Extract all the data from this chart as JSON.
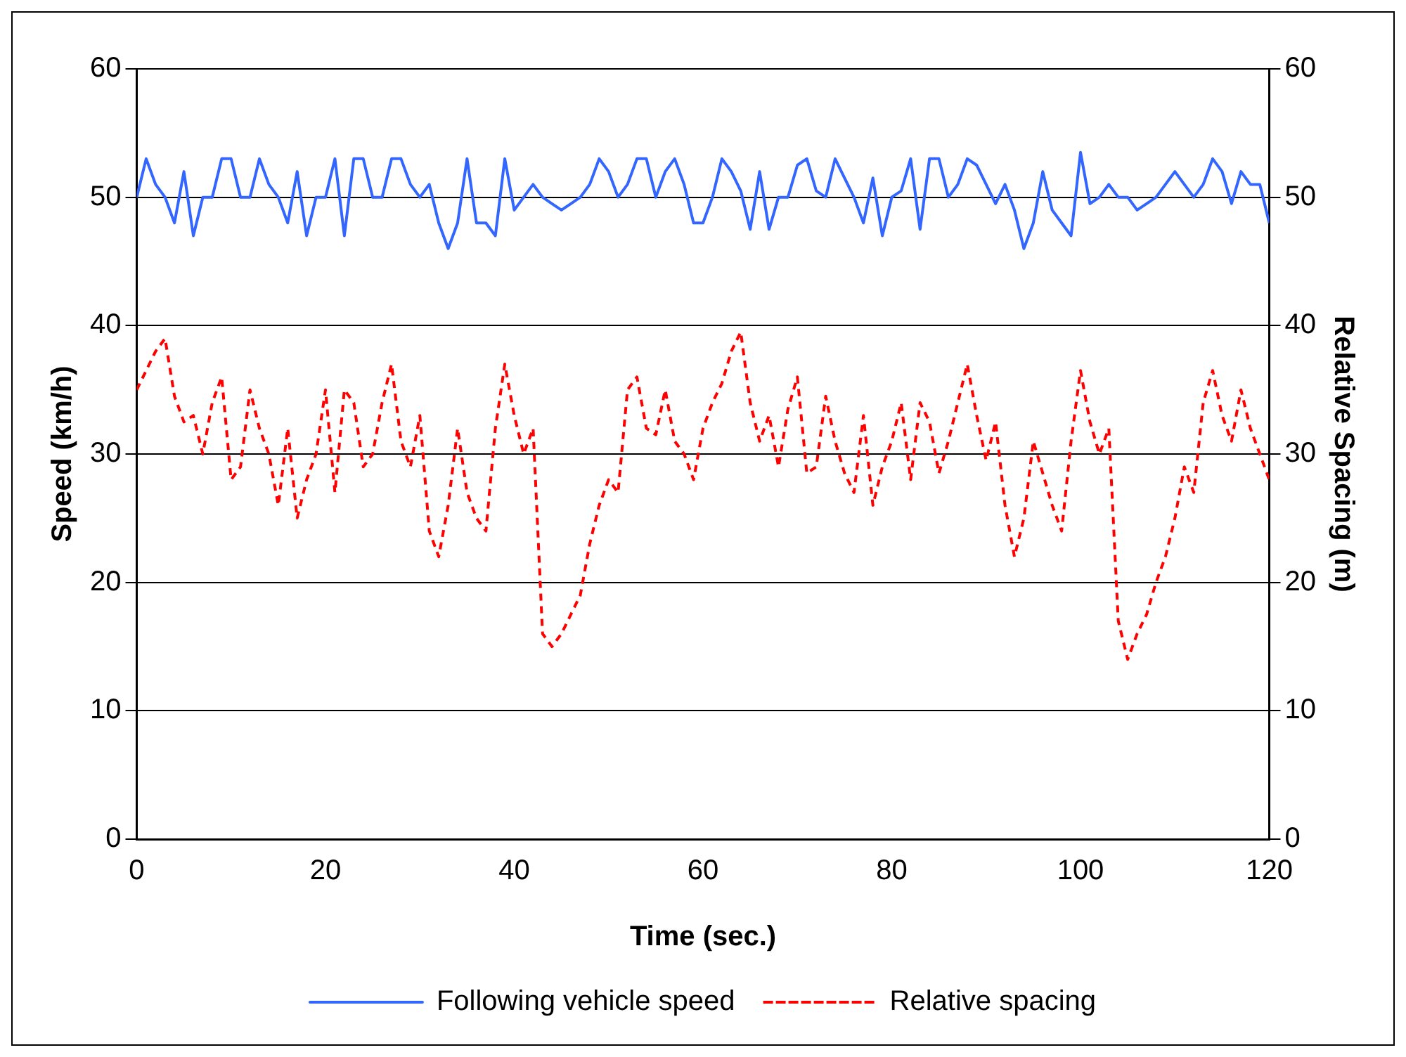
{
  "chart_data": {
    "type": "line",
    "xlabel": "Time (sec.)",
    "ylabel": "Speed (km/h)",
    "y2label": "Relative Spacing (m)",
    "x": [
      0,
      1,
      2,
      3,
      4,
      5,
      6,
      7,
      8,
      9,
      10,
      11,
      12,
      13,
      14,
      15,
      16,
      17,
      18,
      19,
      20,
      21,
      22,
      23,
      24,
      25,
      26,
      27,
      28,
      29,
      30,
      31,
      32,
      33,
      34,
      35,
      36,
      37,
      38,
      39,
      40,
      41,
      42,
      43,
      44,
      45,
      46,
      47,
      48,
      49,
      50,
      51,
      52,
      53,
      54,
      55,
      56,
      57,
      58,
      59,
      60,
      61,
      62,
      63,
      64,
      65,
      66,
      67,
      68,
      69,
      70,
      71,
      72,
      73,
      74,
      75,
      76,
      77,
      78,
      79,
      80,
      81,
      82,
      83,
      84,
      85,
      86,
      87,
      88,
      89,
      90,
      91,
      92,
      93,
      94,
      95,
      96,
      97,
      98,
      99,
      100,
      101,
      102,
      103,
      104,
      105,
      106,
      107,
      108,
      109,
      110,
      111,
      112,
      113,
      114,
      115,
      116,
      117,
      118,
      119,
      120
    ],
    "series": [
      {
        "name": "Following vehicle speed",
        "color": "#3366ff",
        "line_style": "solid",
        "values": [
          50,
          53,
          51,
          50,
          48,
          52,
          47,
          50,
          50,
          53,
          53,
          50,
          50,
          53,
          51,
          50,
          48,
          52,
          47,
          50,
          50,
          53,
          47,
          53,
          53,
          50,
          50,
          53,
          53,
          51,
          50,
          51,
          48,
          46,
          48,
          53,
          48,
          48,
          47,
          53,
          49,
          50,
          51,
          50,
          49.5,
          49,
          49.5,
          50,
          51,
          53,
          52,
          50,
          51,
          53,
          53,
          50,
          52,
          53,
          51,
          48,
          48,
          50,
          53,
          52,
          50.5,
          47.5,
          52,
          47.5,
          50,
          50,
          52.5,
          53,
          50.5,
          50,
          53,
          51.5,
          50,
          48,
          51.5,
          47,
          50,
          50.5,
          53,
          47.5,
          53,
          53,
          50,
          51,
          53,
          52.5,
          51,
          49.5,
          51,
          49,
          46,
          48,
          52,
          49,
          48,
          47,
          53.5,
          49.5,
          50,
          51,
          50,
          50,
          49,
          49.5,
          50,
          51,
          52,
          51,
          50,
          51,
          53,
          52,
          49.5,
          52,
          51,
          51,
          48
        ]
      },
      {
        "name": "Relative spacing",
        "color": "#ff0000",
        "line_style": "dashed",
        "axis": "y2",
        "values": [
          35,
          36.5,
          38,
          39,
          34.5,
          32.5,
          33,
          30,
          34,
          36,
          28,
          29,
          35,
          32,
          30,
          26,
          32,
          25,
          28,
          30,
          35,
          27,
          35,
          34,
          29,
          30,
          34,
          37,
          31,
          29,
          33,
          24,
          22,
          26,
          32,
          27,
          25,
          24,
          32,
          37,
          33,
          30,
          32,
          16,
          15,
          16,
          17.5,
          19,
          23,
          26,
          28,
          27,
          35,
          36,
          32,
          31.5,
          35,
          31,
          30,
          28,
          32,
          34,
          35.5,
          38,
          39.5,
          34,
          31,
          33,
          29,
          33.5,
          36,
          28.5,
          29,
          34.5,
          31,
          28.5,
          27,
          33,
          26,
          29,
          31,
          34,
          28,
          34,
          32.5,
          28.5,
          31,
          34,
          37,
          33,
          29.5,
          32.5,
          26,
          22,
          25,
          31,
          28.5,
          26,
          24,
          31,
          36.5,
          32.5,
          30,
          32,
          17,
          14,
          16,
          17.5,
          20,
          22,
          25,
          29,
          27,
          34,
          36.5,
          33,
          31,
          35,
          32,
          30,
          28
        ]
      }
    ],
    "xlim": [
      0,
      120
    ],
    "xticks": [
      0,
      20,
      40,
      60,
      80,
      100,
      120
    ],
    "ylim": [
      0,
      60
    ],
    "yticks": [
      0,
      10,
      20,
      30,
      40,
      50,
      60
    ],
    "y2lim": [
      0,
      60
    ],
    "y2ticks": [
      0,
      10,
      20,
      30,
      40,
      50,
      60
    ],
    "grid": "y",
    "legend": "bottom"
  }
}
